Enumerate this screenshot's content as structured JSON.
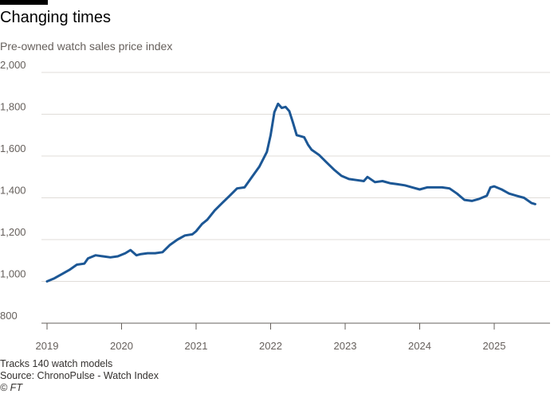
{
  "header": {
    "title": "Changing times",
    "subtitle": "Pre-owned watch sales price index"
  },
  "footer": {
    "note": "Tracks 140 watch models",
    "source": "Source: ChronoPulse - Watch Index",
    "credit": "© FT"
  },
  "colors": {
    "line": "#1c5795",
    "grid": "#e0dcd8",
    "axis": "#66605c"
  },
  "chart_data": {
    "type": "line",
    "title": "Changing times",
    "subtitle": "Pre-owned watch sales price index",
    "xlabel": "",
    "ylabel": "",
    "xlim": [
      2019.0,
      2025.58
    ],
    "ylim": [
      800,
      2000
    ],
    "yticks": [
      800,
      1000,
      1200,
      1400,
      1600,
      1800,
      2000
    ],
    "ytick_labels": [
      "800",
      "1,000",
      "1,200",
      "1,400",
      "1,600",
      "1,800",
      "2,000"
    ],
    "xticks": [
      2019,
      2020,
      2021,
      2022,
      2023,
      2024,
      2025
    ],
    "xtick_labels": [
      "2019",
      "2020",
      "2021",
      "2022",
      "2023",
      "2024",
      "2025"
    ],
    "grid": true,
    "series": [
      {
        "x": [
          2019.0,
          2019.1,
          2019.2,
          2019.3,
          2019.4,
          2019.5,
          2019.55,
          2019.65,
          2019.75,
          2019.85,
          2019.95,
          2020.05,
          2020.12,
          2020.2,
          2020.25,
          2020.35,
          2020.45,
          2020.55,
          2020.65,
          2020.75,
          2020.85,
          2020.95,
          2021.0,
          2021.08,
          2021.15,
          2021.25,
          2021.35,
          2021.45,
          2021.55,
          2021.65,
          2021.75,
          2021.85,
          2021.95,
          2022.0,
          2022.05,
          2022.1,
          2022.15,
          2022.2,
          2022.25,
          2022.3,
          2022.35,
          2022.4,
          2022.45,
          2022.5,
          2022.55,
          2022.65,
          2022.75,
          2022.85,
          2022.95,
          2023.05,
          2023.15,
          2023.25,
          2023.3,
          2023.4,
          2023.5,
          2023.6,
          2023.7,
          2023.8,
          2023.9,
          2024.0,
          2024.1,
          2024.2,
          2024.3,
          2024.4,
          2024.5,
          2024.6,
          2024.7,
          2024.8,
          2024.9,
          2024.95,
          2025.0,
          2025.1,
          2025.2,
          2025.3,
          2025.4,
          2025.5,
          2025.55
        ],
        "values": [
          1000,
          1015,
          1035,
          1055,
          1080,
          1085,
          1110,
          1125,
          1120,
          1115,
          1120,
          1135,
          1150,
          1125,
          1130,
          1135,
          1135,
          1140,
          1175,
          1200,
          1220,
          1225,
          1240,
          1275,
          1295,
          1340,
          1375,
          1410,
          1445,
          1450,
          1500,
          1550,
          1620,
          1700,
          1810,
          1850,
          1830,
          1835,
          1815,
          1760,
          1700,
          1695,
          1690,
          1655,
          1630,
          1605,
          1570,
          1535,
          1505,
          1490,
          1485,
          1480,
          1500,
          1475,
          1480,
          1470,
          1465,
          1460,
          1450,
          1440,
          1450,
          1450,
          1450,
          1445,
          1420,
          1390,
          1385,
          1395,
          1410,
          1450,
          1455,
          1440,
          1420,
          1410,
          1400,
          1375,
          1370
        ]
      }
    ]
  }
}
